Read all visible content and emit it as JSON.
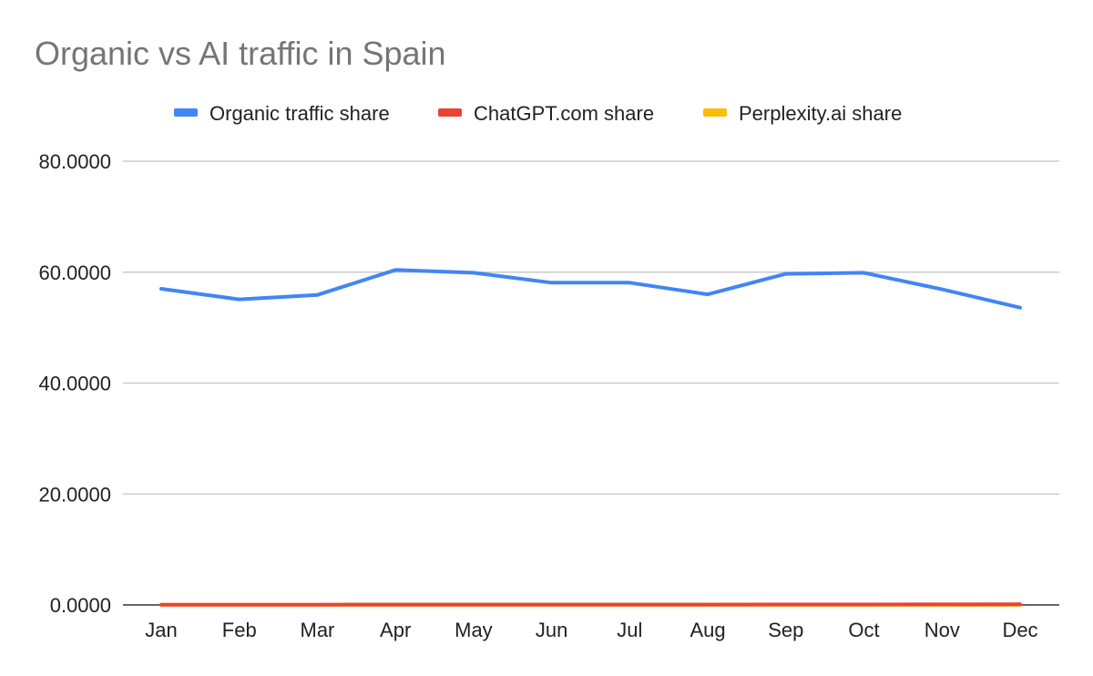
{
  "chart_data": {
    "type": "line",
    "title": "Organic vs AI traffic in Spain",
    "xlabel": "",
    "ylabel": "",
    "categories": [
      "Jan",
      "Feb",
      "Mar",
      "Apr",
      "May",
      "Jun",
      "Jul",
      "Aug",
      "Sep",
      "Oct",
      "Nov",
      "Dec"
    ],
    "series": [
      {
        "name": "Organic traffic share",
        "color": "#4285F4",
        "values": [
          57.0,
          55.1,
          55.9,
          60.4,
          59.9,
          58.1,
          58.1,
          56.0,
          59.7,
          59.9,
          56.9,
          53.6
        ]
      },
      {
        "name": "ChatGPT.com share",
        "color": "#EA4335",
        "values": [
          0.05,
          0.05,
          0.05,
          0.06,
          0.06,
          0.06,
          0.06,
          0.07,
          0.08,
          0.09,
          0.1,
          0.11
        ]
      },
      {
        "name": "Perplexity.ai share",
        "color": "#FBBC04",
        "values": [
          0.01,
          0.01,
          0.01,
          0.01,
          0.01,
          0.01,
          0.01,
          0.01,
          0.01,
          0.01,
          0.01,
          0.01
        ]
      }
    ],
    "ylim": [
      0,
      80
    ],
    "yticks": [
      0,
      20,
      40,
      60,
      80
    ],
    "ytick_labels": [
      "0.0000",
      "20.0000",
      "40.0000",
      "60.0000",
      "80.0000"
    ],
    "grid": true,
    "legend_position": "top-center"
  }
}
